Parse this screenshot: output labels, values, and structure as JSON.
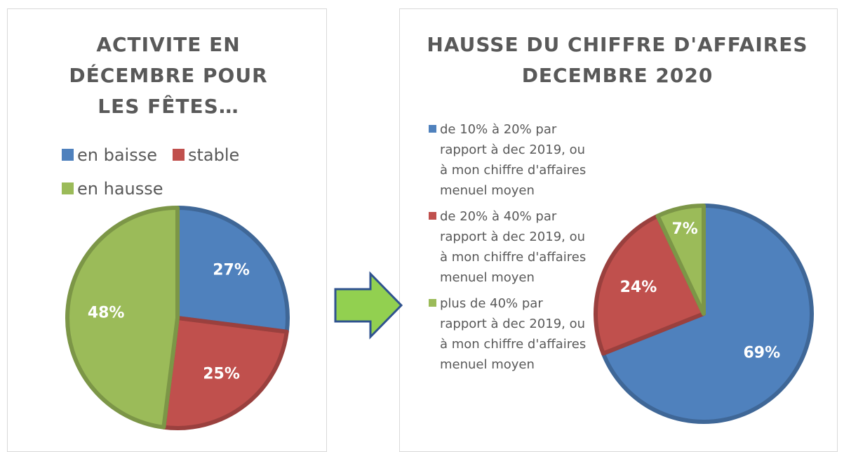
{
  "chart_data": [
    {
      "type": "pie",
      "title": "ACTIVITE EN DÉCEMBRE POUR LES FÊTES…",
      "categories": [
        "en baisse",
        "stable",
        "en hausse"
      ],
      "values": [
        27,
        25,
        48
      ],
      "value_labels": [
        "27%",
        "25%",
        "48%"
      ],
      "colors": [
        "#4f81bd",
        "#c0504d",
        "#9bbb59"
      ],
      "legend": "top"
    },
    {
      "type": "pie",
      "title": "HAUSSE DU CHIFFRE D'AFFAIRES DECEMBRE 2020",
      "categories": [
        "de 10% à 20% par rapport à dec 2019, ou à mon chiffre d'affaires menuel moyen",
        "de 20% à 40% par rapport à dec 2019, ou à mon chiffre d'affaires menuel moyen",
        "plus de 40% par rapport à dec 2019, ou à mon chiffre d'affaires menuel moyen"
      ],
      "values": [
        69,
        24,
        7
      ],
      "value_labels": [
        "69%",
        "24%",
        "7%"
      ],
      "colors": [
        "#4f81bd",
        "#c0504d",
        "#9bbb59"
      ],
      "legend": "left"
    }
  ]
}
